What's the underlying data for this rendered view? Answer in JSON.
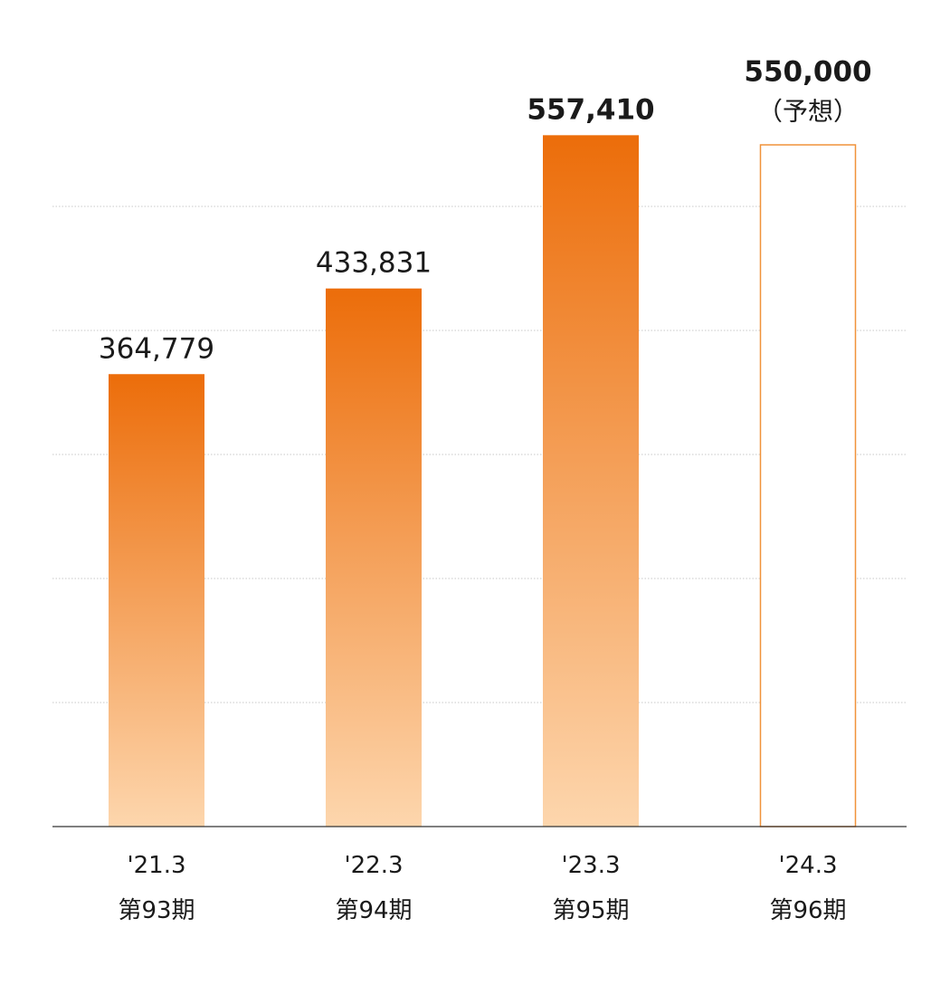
{
  "chart_data": {
    "type": "bar",
    "title": "",
    "xlabel": "",
    "ylabel": "",
    "categories": [
      {
        "date": "'21.3",
        "period": "第93期"
      },
      {
        "date": "'22.3",
        "period": "第94期"
      },
      {
        "date": "'23.3",
        "period": "第95期"
      },
      {
        "date": "'24.3",
        "period": "第96期"
      }
    ],
    "values": [
      364779,
      433831,
      557410,
      550000
    ],
    "value_labels": [
      "364,779",
      "433,831",
      "557,410",
      "550,000"
    ],
    "forecast_note": "（予想）",
    "forecast_index": 3,
    "highlight_index": [
      2,
      3
    ],
    "ylim": [
      0,
      600000
    ],
    "gridlines": [
      100000,
      200000,
      300000,
      400000,
      500000
    ],
    "grid": true,
    "legend": false,
    "colors": {
      "bar_top": "#ec6d0a",
      "bar_bottom": "#fdd6ad",
      "forecast_border": "#f0923a",
      "forecast_fill": "#ffffff",
      "grid": "#c8c8c8",
      "axis": "#333333"
    }
  }
}
